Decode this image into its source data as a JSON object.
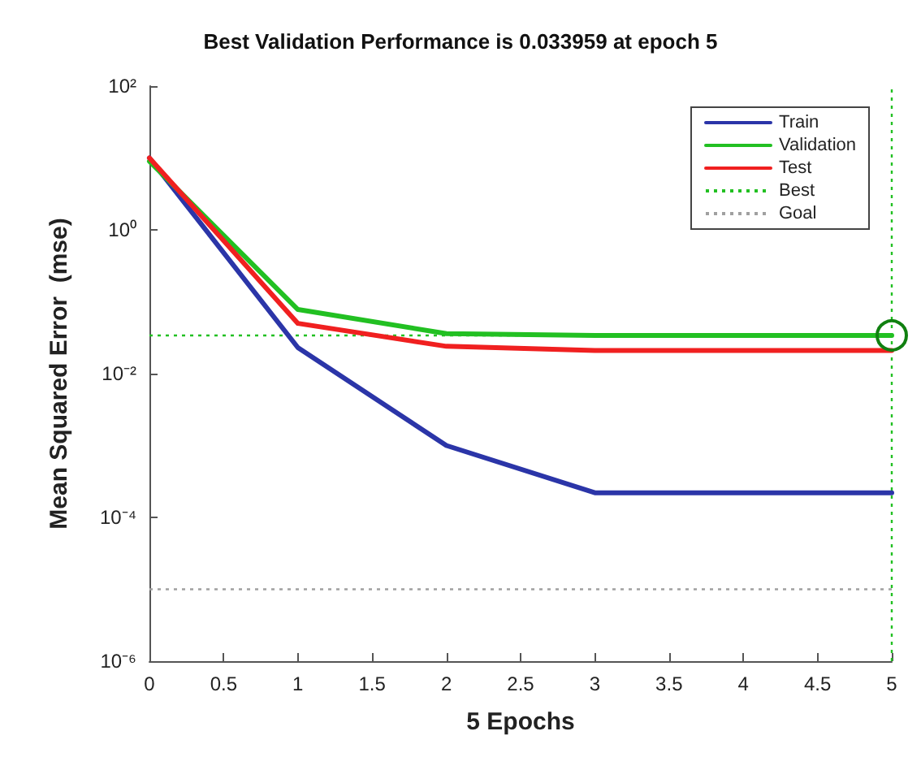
{
  "chart_data": {
    "type": "line",
    "title": "Best Validation Performance is 0.033959 at epoch 5",
    "xlabel": "5 Epochs",
    "ylabel": "Mean Squared Error  (mse)",
    "x": [
      0,
      1,
      2,
      3,
      4,
      5
    ],
    "series": [
      {
        "name": "Train",
        "color": "#2b35a8",
        "values": [
          10,
          0.023,
          0.001,
          0.00022,
          0.00022,
          0.00022
        ]
      },
      {
        "name": "Validation",
        "color": "#22c022",
        "values": [
          9,
          0.078,
          0.036,
          0.034,
          0.034,
          0.033959
        ]
      },
      {
        "name": "Test",
        "color": "#f02020",
        "values": [
          10,
          0.05,
          0.024,
          0.021,
          0.021,
          0.021
        ]
      },
      {
        "type": "scatter",
        "color": "#108010",
        "x": [
          5
        ],
        "values": [
          0.033959
        ],
        "marker": "circle"
      }
    ],
    "ref_lines": [
      {
        "axis": "y",
        "value": 0.033959,
        "label": "Best",
        "color": "#22c022",
        "line_style": "dotted"
      },
      {
        "axis": "x",
        "value": 5,
        "color": "#22c022",
        "line_style": "dotted"
      },
      {
        "axis": "y",
        "value": 1e-05,
        "label": "Goal",
        "color": "#a0a0a0",
        "line_style": "dotted"
      }
    ],
    "xlim": [
      0,
      5
    ],
    "xticks": [
      0,
      0.5,
      1,
      1.5,
      2,
      2.5,
      3,
      3.5,
      4,
      4.5,
      5
    ],
    "log": "y",
    "ylim": [
      1e-06,
      100
    ],
    "yticks": [
      {
        "value": 100,
        "label": "10²"
      },
      {
        "value": 1,
        "label": "10⁰"
      },
      {
        "value": 0.01,
        "label": "10⁻²"
      },
      {
        "value": 0.0001,
        "label": "10⁻⁴"
      },
      {
        "value": 1e-06,
        "label": "10⁻⁶"
      }
    ],
    "grid": false,
    "legend": "top right",
    "marker": "none",
    "line_style": "solid"
  }
}
